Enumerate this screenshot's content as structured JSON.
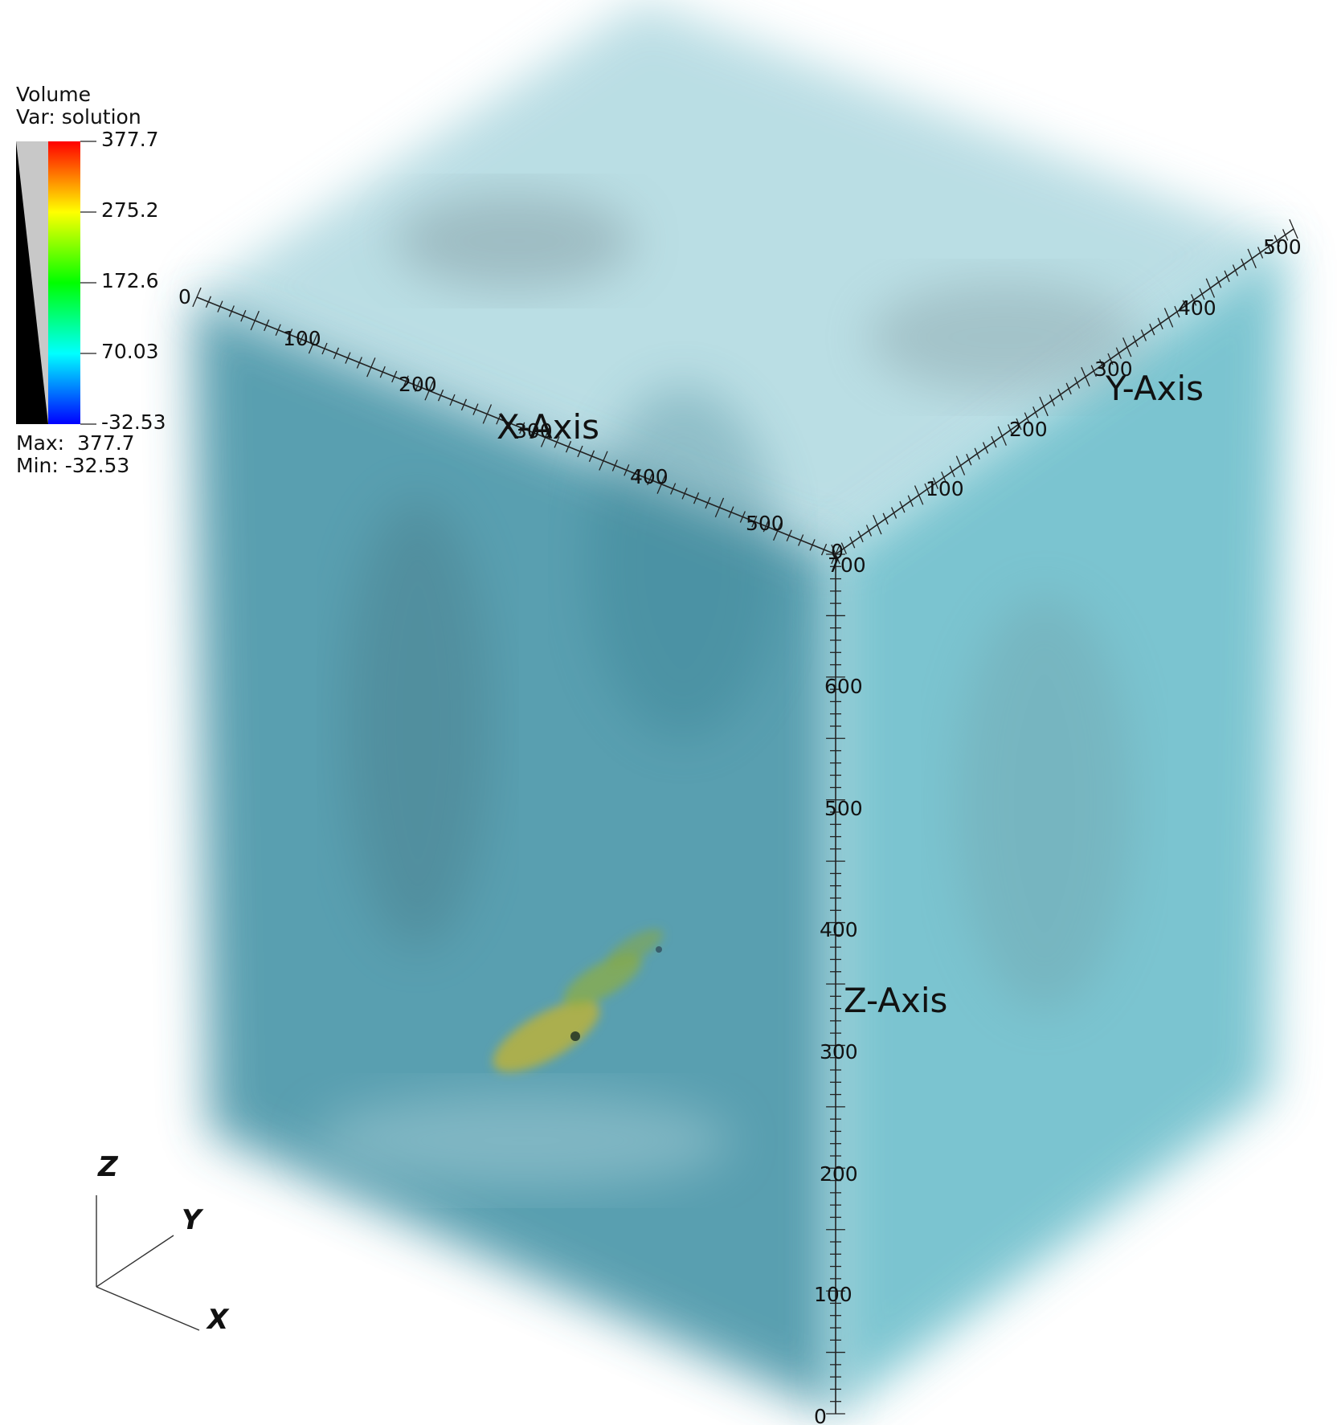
{
  "legend": {
    "title": "Volume",
    "variable": "Var: solution",
    "ticks": [
      "377.7",
      "275.2",
      "172.6",
      "70.03",
      "-32.53"
    ],
    "max": "Max:  377.7",
    "min": "Min: -32.53"
  },
  "axes": {
    "x_title": "X-Axis",
    "y_title": "Y-Axis",
    "z_title": "Z-Axis",
    "x_ticks": [
      "0",
      "100",
      "200",
      "300",
      "400",
      "500"
    ],
    "y_ticks": [
      "0",
      "100",
      "200",
      "300",
      "400",
      "500"
    ],
    "z_ticks": [
      "0",
      "100",
      "200",
      "300",
      "400",
      "500",
      "600",
      "700"
    ]
  },
  "triad": {
    "x": "X",
    "y": "Y",
    "z": "Z"
  },
  "colors": {
    "volume": "#3f96a6",
    "volume_light": "#a9dbe2",
    "hotspot": "#b7b13a"
  }
}
